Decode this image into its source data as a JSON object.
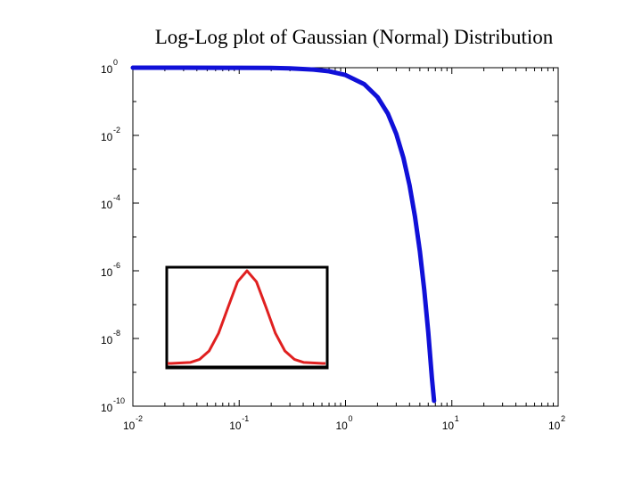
{
  "chart_data": {
    "type": "line",
    "title": "Log-Log plot of Gaussian (Normal) Distribution",
    "xlabel": "",
    "ylabel": "",
    "x_scale": "log",
    "y_scale": "log",
    "xlim": [
      0.01,
      100
    ],
    "ylim": [
      1e-10,
      1
    ],
    "x_ticks": [
      {
        "base": "10",
        "exp": "-2"
      },
      {
        "base": "10",
        "exp": "-1"
      },
      {
        "base": "10",
        "exp": "0"
      },
      {
        "base": "10",
        "exp": "1"
      },
      {
        "base": "10",
        "exp": "2"
      }
    ],
    "y_ticks": [
      {
        "base": "10",
        "exp": "0"
      },
      {
        "base": "10",
        "exp": "-2"
      },
      {
        "base": "10",
        "exp": "-4"
      },
      {
        "base": "10",
        "exp": "-6"
      },
      {
        "base": "10",
        "exp": "-8"
      },
      {
        "base": "10",
        "exp": "-10"
      }
    ],
    "grid": false,
    "series": [
      {
        "color": "#1010d8",
        "x": [
          0.01,
          0.03,
          0.1,
          0.2,
          0.3,
          0.5,
          0.7,
          1.0,
          1.5,
          2.0,
          2.5,
          3.0,
          3.5,
          4.0,
          4.5,
          5.0,
          5.5,
          6.0,
          6.5,
          6.8
        ],
        "y": [
          1.0,
          1.0,
          0.995,
          0.98,
          0.956,
          0.882,
          0.783,
          0.607,
          0.325,
          0.135,
          0.0439,
          0.0111,
          0.00219,
          0.000335,
          3.99e-05,
          3.73e-06,
          2.72e-07,
          1.52e-08,
          6.7e-10,
          9.2e-11
        ]
      }
    ],
    "inset": {
      "type": "line",
      "shape": "gaussian bell curve",
      "series_color": "#e02020",
      "x": [
        -4,
        -3,
        -2.5,
        -2,
        -1.5,
        -1,
        -0.5,
        0,
        0.5,
        1,
        1.5,
        2,
        2.5,
        3,
        4
      ],
      "y": [
        0.0003,
        0.011,
        0.044,
        0.135,
        0.325,
        0.607,
        0.882,
        1.0,
        0.882,
        0.607,
        0.325,
        0.135,
        0.044,
        0.011,
        0.0003
      ]
    }
  }
}
